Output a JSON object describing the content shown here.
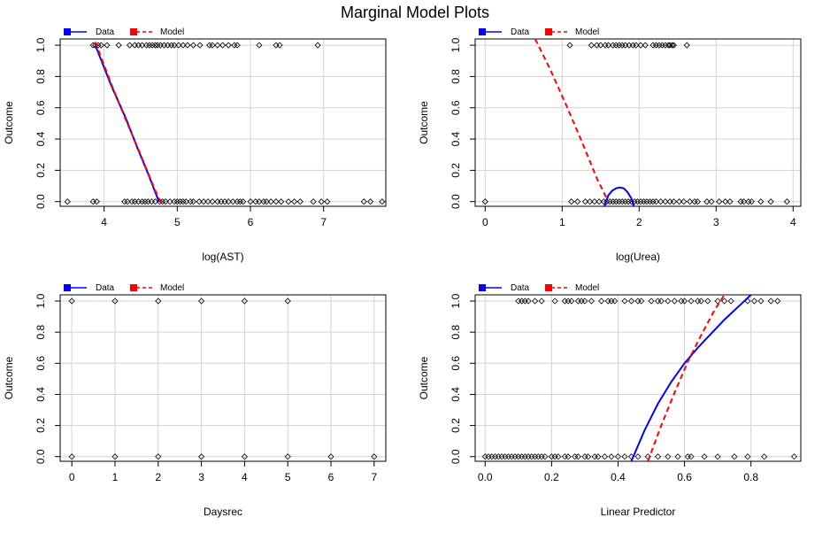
{
  "title": "Marginal Model Plots",
  "colors": {
    "data": "#0000ff",
    "model": "#ff0000",
    "grid": "#d3d3d3",
    "point": "#000000"
  },
  "chart_data": [
    {
      "type": "scatter",
      "xlabel": "log(AST)",
      "ylabel": "Outcome",
      "xlim": [
        3.4,
        7.85
      ],
      "ylim": [
        -0.03,
        1.04
      ],
      "xticks": [
        4,
        5,
        6,
        7
      ],
      "yticks": [
        0.0,
        0.2,
        0.4,
        0.6,
        0.8,
        1.0
      ],
      "legend": {
        "position": "top-left",
        "entries": [
          "Data",
          "Model"
        ]
      },
      "points_y1": [
        3.85,
        3.88,
        3.92,
        3.96,
        4.04,
        4.2,
        4.35,
        4.42,
        4.47,
        4.52,
        4.58,
        4.62,
        4.66,
        4.7,
        4.73,
        4.77,
        4.82,
        4.87,
        4.92,
        4.96,
        5.02,
        5.08,
        5.14,
        5.22,
        5.31,
        5.44,
        5.48,
        5.55,
        5.62,
        5.7,
        5.78,
        5.82,
        6.12,
        6.35,
        6.4,
        6.92
      ],
      "points_y0": [
        3.5,
        3.85,
        3.9,
        4.28,
        4.32,
        4.38,
        4.42,
        4.47,
        4.52,
        4.56,
        4.6,
        4.65,
        4.7,
        4.76,
        4.8,
        4.84,
        4.9,
        4.96,
        5.0,
        5.04,
        5.08,
        5.12,
        5.18,
        5.22,
        5.3,
        5.36,
        5.42,
        5.48,
        5.55,
        5.6,
        5.65,
        5.7,
        5.76,
        5.82,
        5.86,
        5.9,
        6.0,
        6.07,
        6.12,
        6.18,
        6.22,
        6.28,
        6.35,
        6.42,
        6.52,
        6.6,
        6.68,
        6.86,
        6.97,
        7.05,
        7.55,
        7.64,
        7.8
      ],
      "series": [
        {
          "name": "Data",
          "style": "solid",
          "x": [
            3.88,
            4.1,
            4.3,
            4.45,
            4.6,
            4.75
          ],
          "y": [
            1.0,
            0.74,
            0.53,
            0.35,
            0.18,
            0.0
          ]
        },
        {
          "name": "Model",
          "style": "dashed",
          "x": [
            3.88,
            4.1,
            4.3,
            4.5,
            4.7,
            4.8
          ],
          "y": [
            1.02,
            0.75,
            0.52,
            0.3,
            0.07,
            -0.03
          ]
        }
      ]
    },
    {
      "type": "scatter",
      "xlabel": "log(Urea)",
      "ylabel": "Outcome",
      "xlim": [
        -0.13,
        4.1
      ],
      "ylim": [
        -0.03,
        1.04
      ],
      "xticks": [
        0,
        1,
        2,
        3,
        4
      ],
      "yticks": [
        0.0,
        0.2,
        0.4,
        0.6,
        0.8,
        1.0
      ],
      "legend": {
        "position": "top-left",
        "entries": [
          "Data",
          "Model"
        ]
      },
      "points_y1": [
        1.1,
        1.38,
        1.45,
        1.5,
        1.56,
        1.6,
        1.66,
        1.7,
        1.74,
        1.78,
        1.82,
        1.87,
        1.92,
        1.96,
        2.02,
        2.08,
        2.18,
        2.22,
        2.26,
        2.3,
        2.34,
        2.38,
        2.4,
        2.43,
        2.45,
        2.62
      ],
      "points_y0": [
        0.0,
        1.12,
        1.2,
        1.3,
        1.36,
        1.42,
        1.48,
        1.54,
        1.58,
        1.62,
        1.66,
        1.7,
        1.74,
        1.78,
        1.82,
        1.86,
        1.9,
        1.94,
        1.98,
        2.02,
        2.06,
        2.1,
        2.14,
        2.18,
        2.22,
        2.28,
        2.34,
        2.4,
        2.45,
        2.52,
        2.58,
        2.66,
        2.72,
        2.76,
        2.88,
        2.94,
        3.04,
        3.12,
        3.18,
        3.32,
        3.36,
        3.42,
        3.46,
        3.58,
        3.71,
        3.92
      ],
      "series": [
        {
          "name": "Data",
          "style": "solid",
          "x": [
            1.55,
            1.6,
            1.65,
            1.7,
            1.75,
            1.8,
            1.85,
            1.9,
            1.93
          ],
          "y": [
            -0.03,
            0.04,
            0.07,
            0.085,
            0.09,
            0.085,
            0.06,
            0.02,
            -0.03
          ]
        },
        {
          "name": "Model",
          "style": "dashed",
          "x": [
            0.65,
            0.85,
            1.05,
            1.25,
            1.45,
            1.6
          ],
          "y": [
            1.04,
            0.84,
            0.62,
            0.39,
            0.15,
            0.0
          ]
        }
      ]
    },
    {
      "type": "scatter",
      "xlabel": "Daysrec",
      "ylabel": "Outcome",
      "xlim": [
        -0.27,
        7.27
      ],
      "ylim": [
        -0.03,
        1.04
      ],
      "xticks": [
        0,
        1,
        2,
        3,
        4,
        5,
        6,
        7
      ],
      "yticks": [
        0.0,
        0.2,
        0.4,
        0.6,
        0.8,
        1.0
      ],
      "legend": {
        "position": "top-left",
        "entries": [
          "Data",
          "Model"
        ]
      },
      "points_y1": [
        0,
        1,
        2,
        3,
        4,
        5
      ],
      "points_y0": [
        0,
        1,
        2,
        3,
        4,
        5,
        6,
        7
      ],
      "series": []
    },
    {
      "type": "scatter",
      "xlabel": "Linear Predictor",
      "ylabel": "Outcome",
      "xlim": [
        -0.03,
        0.95
      ],
      "ylim": [
        -0.03,
        1.04
      ],
      "xticks": [
        0.0,
        0.2,
        0.4,
        0.6,
        0.8
      ],
      "yticks": [
        0.0,
        0.2,
        0.4,
        0.6,
        0.8,
        1.0
      ],
      "legend": {
        "position": "top-left",
        "entries": [
          "Data",
          "Model"
        ]
      },
      "points_y1": [
        0.1,
        0.11,
        0.12,
        0.13,
        0.15,
        0.17,
        0.21,
        0.24,
        0.25,
        0.26,
        0.28,
        0.29,
        0.3,
        0.32,
        0.35,
        0.37,
        0.38,
        0.39,
        0.42,
        0.44,
        0.46,
        0.47,
        0.5,
        0.52,
        0.53,
        0.55,
        0.57,
        0.59,
        0.6,
        0.62,
        0.64,
        0.65,
        0.67,
        0.7,
        0.72,
        0.74,
        0.79,
        0.81,
        0.83,
        0.86,
        0.88
      ],
      "points_y0": [
        0.0,
        0.01,
        0.02,
        0.03,
        0.04,
        0.05,
        0.06,
        0.07,
        0.08,
        0.09,
        0.1,
        0.11,
        0.12,
        0.13,
        0.14,
        0.15,
        0.16,
        0.17,
        0.18,
        0.2,
        0.21,
        0.22,
        0.24,
        0.25,
        0.27,
        0.28,
        0.3,
        0.31,
        0.33,
        0.34,
        0.36,
        0.38,
        0.4,
        0.42,
        0.44,
        0.46,
        0.49,
        0.52,
        0.55,
        0.58,
        0.61,
        0.62,
        0.66,
        0.7,
        0.75,
        0.79,
        0.84,
        0.93
      ],
      "series": [
        {
          "name": "Data",
          "style": "solid",
          "x": [
            0.44,
            0.48,
            0.52,
            0.56,
            0.6,
            0.64,
            0.68,
            0.72,
            0.76,
            0.8
          ],
          "y": [
            -0.03,
            0.17,
            0.34,
            0.48,
            0.6,
            0.7,
            0.79,
            0.88,
            0.96,
            1.04
          ]
        },
        {
          "name": "Model",
          "style": "dashed",
          "x": [
            0.49,
            0.53,
            0.57,
            0.61,
            0.65,
            0.69,
            0.72
          ],
          "y": [
            -0.03,
            0.2,
            0.41,
            0.61,
            0.78,
            0.94,
            1.04
          ]
        }
      ]
    }
  ]
}
